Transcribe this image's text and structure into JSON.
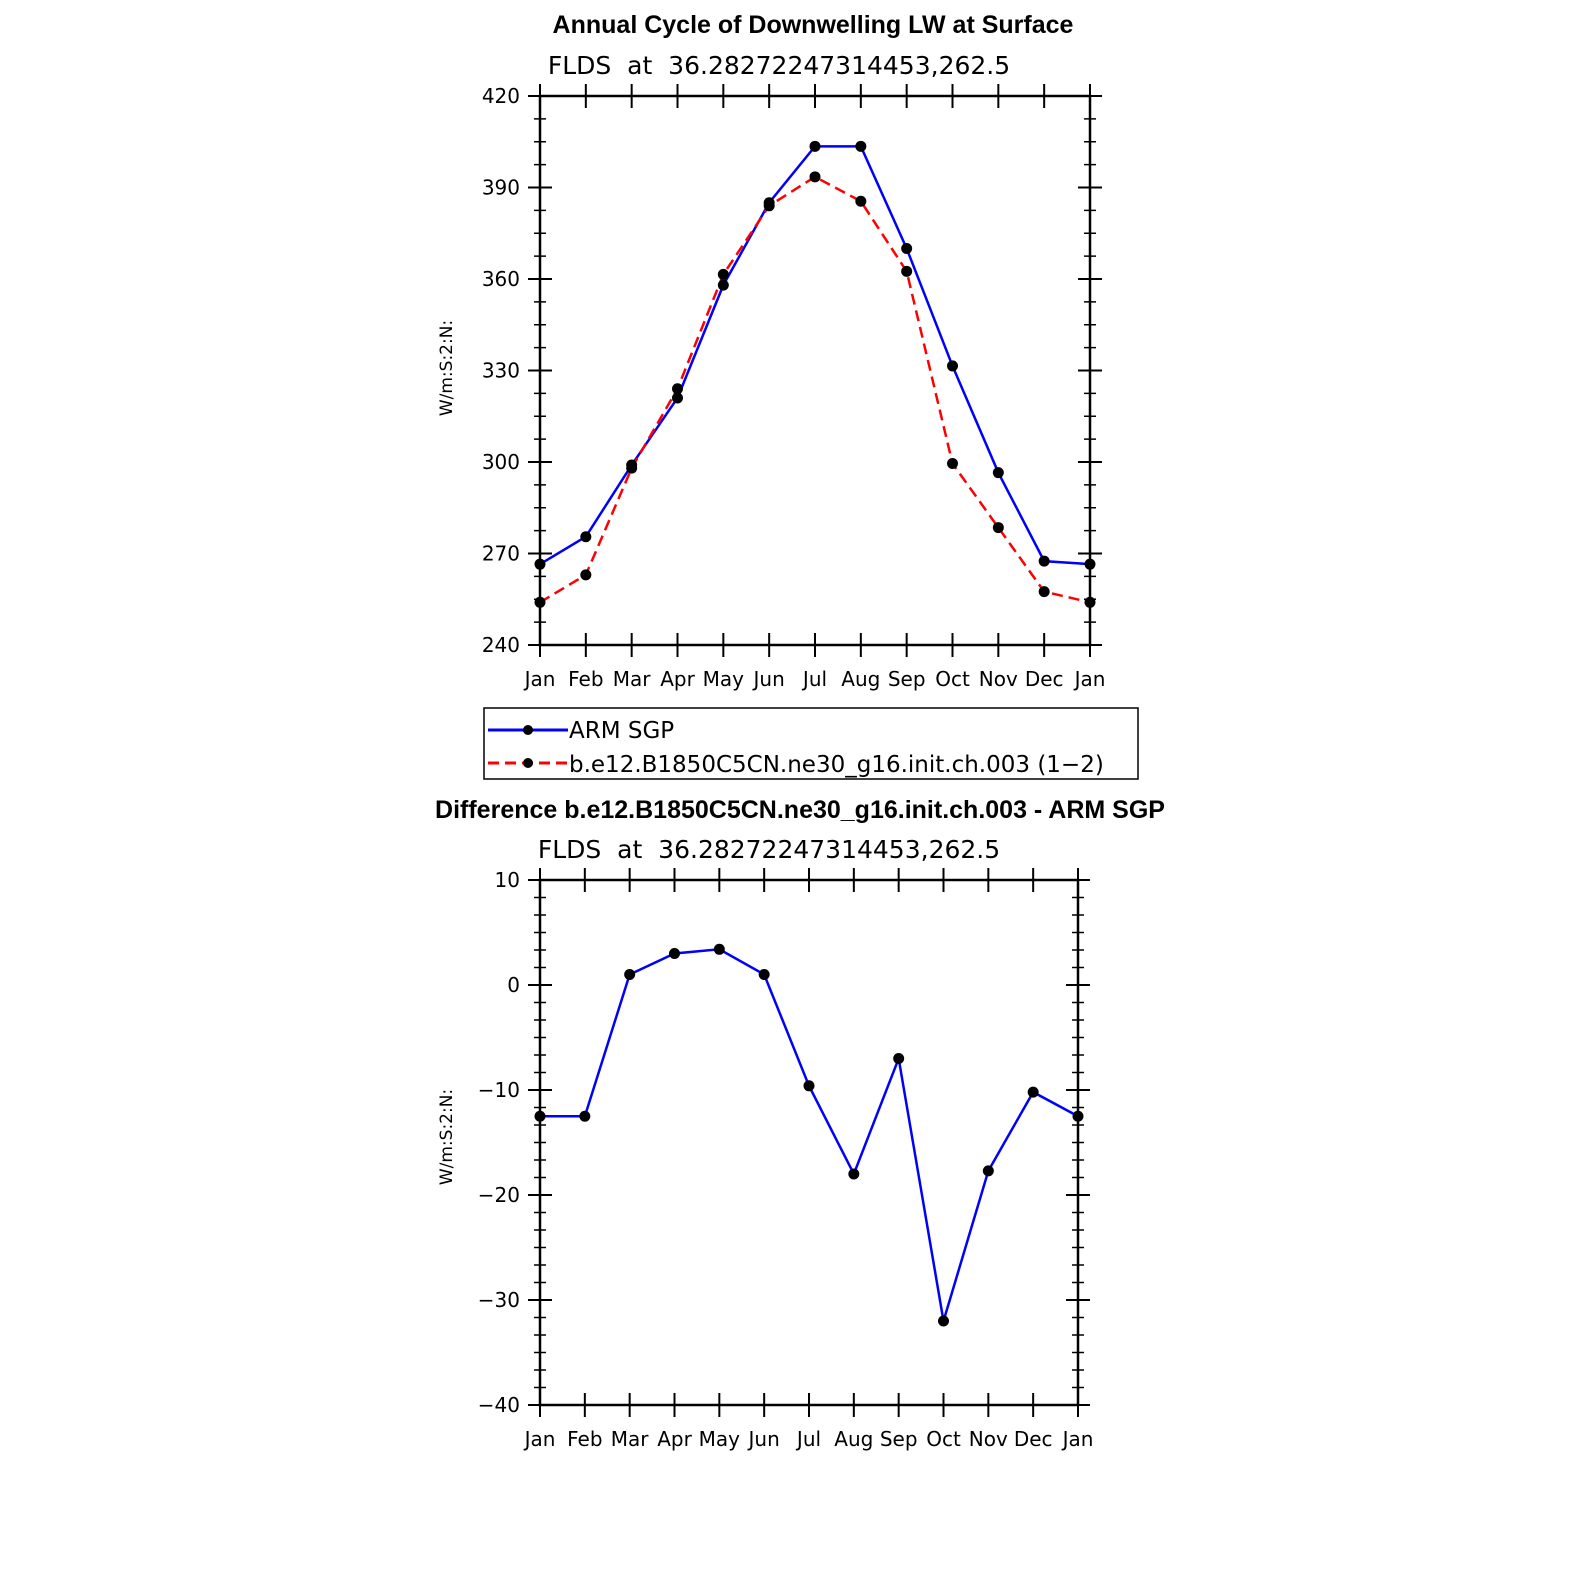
{
  "chart_data": [
    {
      "type": "line",
      "title": "Annual Cycle of Downwelling LW at Surface",
      "subtitle": "FLDS  at  36.28272247314453,262.5",
      "ylabel": "W/m:S:2:N:",
      "xlabel": "",
      "categories": [
        "Jan",
        "Feb",
        "Mar",
        "Apr",
        "May",
        "Jun",
        "Jul",
        "Aug",
        "Sep",
        "Oct",
        "Nov",
        "Dec",
        "Jan"
      ],
      "ylim": [
        240,
        420
      ],
      "yticks": [
        "240",
        "270",
        "300",
        "330",
        "360",
        "390",
        "420"
      ],
      "series": [
        {
          "name": "ARM SGP",
          "color": "#0000ff",
          "dash": "solid",
          "values": [
            266.5,
            275.5,
            299.0,
            321.0,
            358.0,
            385.0,
            403.5,
            403.5,
            370.0,
            331.5,
            296.5,
            267.5,
            266.5
          ]
        },
        {
          "name": "b.e12.B1850C5CN.ne30_g16.init.ch.003 (1−2)",
          "color": "#ff0000",
          "dash": "dashed",
          "values": [
            254.0,
            263.0,
            298.0,
            324.0,
            361.5,
            384.0,
            393.5,
            385.5,
            362.5,
            299.5,
            278.5,
            257.5,
            254.0
          ]
        }
      ],
      "legend_position": "bottom"
    },
    {
      "type": "line",
      "title": "Difference b.e12.B1850C5CN.ne30_g16.init.ch.003 - ARM SGP",
      "subtitle": "FLDS  at  36.28272247314453,262.5",
      "ylabel": "W/m:S:2:N:",
      "xlabel": "",
      "categories": [
        "Jan",
        "Feb",
        "Mar",
        "Apr",
        "May",
        "Jun",
        "Jul",
        "Aug",
        "Sep",
        "Oct",
        "Nov",
        "Dec",
        "Jan"
      ],
      "ylim": [
        -40,
        10
      ],
      "yticks": [
        "−40",
        "−30",
        "−20",
        "−10",
        "0",
        "10"
      ],
      "series": [
        {
          "name": "",
          "color": "#0000ff",
          "dash": "solid",
          "values": [
            -12.5,
            -12.5,
            1.0,
            3.0,
            3.4,
            1.0,
            -9.6,
            -18.0,
            -7.0,
            -32.0,
            -17.7,
            -10.2,
            -12.5
          ]
        }
      ]
    }
  ]
}
